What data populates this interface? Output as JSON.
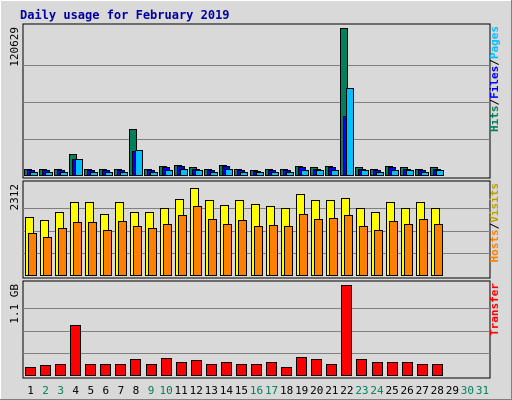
{
  "chart_data": {
    "type": "bar",
    "title": "Daily usage for February 2019",
    "days": [
      "1",
      "2",
      "3",
      "4",
      "5",
      "6",
      "7",
      "8",
      "9",
      "10",
      "11",
      "12",
      "13",
      "14",
      "15",
      "16",
      "17",
      "18",
      "19",
      "20",
      "21",
      "22",
      "23",
      "24",
      "25",
      "26",
      "27",
      "28",
      "29",
      "30",
      "31"
    ],
    "weekend_days": [
      "2",
      "3",
      "9",
      "10",
      "16",
      "17",
      "23",
      "24",
      "30",
      "31"
    ],
    "colors": {
      "title": "#0000a0",
      "hits": "#00805c",
      "files": "#0000ff",
      "pages": "#00c0ff",
      "visits": "#ffff00",
      "sites": "#ff8000",
      "kbytes": "#ff0000",
      "weekday_label": "#000000",
      "weekend_label": "#00805c"
    },
    "panels": [
      {
        "name": "hits-files-pages",
        "ymax_label": "120629",
        "ymax": 120629,
        "side_labels": [
          {
            "text": "Hits",
            "color": "#00805c"
          },
          {
            "text": "/",
            "color": "#000000"
          },
          {
            "text": "Files",
            "color": "#0000ff"
          },
          {
            "text": "/",
            "color": "#000000"
          },
          {
            "text": "Pages",
            "color": "#00c0ff"
          }
        ],
        "series": [
          {
            "key": "hits",
            "color": "#00805c",
            "values": [
              6100,
              5600,
              5600,
              18000,
              6100,
              6100,
              6100,
              38500,
              6100,
              8100,
              9000,
              7100,
              6100,
              9000,
              6100,
              5200,
              5600,
              5600,
              8100,
              7100,
              8100,
              120629,
              7100,
              6100,
              8100,
              7100,
              6100,
              7100,
              0,
              0,
              0
            ]
          },
          {
            "key": "files",
            "color": "#0000ff",
            "values": [
              5100,
              4600,
              4600,
              14000,
              5100,
              5100,
              5100,
              20500,
              5100,
              7100,
              8100,
              6100,
              5100,
              8100,
              5100,
              4200,
              4600,
              4600,
              7100,
              6100,
              7100,
              48500,
              6100,
              5100,
              7100,
              6100,
              5100,
              6100,
              0,
              0,
              0
            ]
          },
          {
            "key": "pages",
            "color": "#00c0ff",
            "values": [
              3600,
              3100,
              3100,
              13500,
              3600,
              3600,
              3600,
              21000,
              3600,
              5100,
              6100,
              5100,
              3600,
              6100,
              3600,
              3100,
              3100,
              3100,
              5100,
              4600,
              5100,
              72000,
              5100,
              3600,
              5100,
              4600,
              3600,
              5100,
              0,
              0,
              0
            ]
          }
        ]
      },
      {
        "name": "visits-sites",
        "ymax_label": "2312",
        "ymax": 2312,
        "side_labels": [
          {
            "text": "Hosts",
            "color": "#ff8000"
          },
          {
            "text": "/",
            "color": "#000000"
          },
          {
            "text": "Visits",
            "color": "#c0a000"
          }
        ],
        "series": [
          {
            "key": "visits",
            "color": "#ffff00",
            "values": [
              1500,
              1420,
              1630,
              1870,
              1870,
              1570,
              1870,
              1630,
              1630,
              1720,
              1960,
              2240,
              1930,
              1810,
              1930,
              1840,
              1780,
              1720,
              2080,
              1930,
              1930,
              1990,
              1720,
              1630,
              1870,
              1720,
              1870,
              1720,
              0,
              0,
              0
            ]
          },
          {
            "key": "sites",
            "color": "#ff8000",
            "values": [
              1090,
              1000,
              1210,
              1360,
              1360,
              1180,
              1390,
              1270,
              1210,
              1330,
              1540,
              1770,
              1450,
              1330,
              1420,
              1270,
              1300,
              1270,
              1570,
              1450,
              1480,
              1540,
              1270,
              1180,
              1390,
              1330,
              1450,
              1330,
              0,
              0,
              0
            ]
          }
        ]
      },
      {
        "name": "kbytes",
        "ymax_label": "1.1 GB",
        "ymax": 1.1,
        "side_labels": [
          {
            "text": "Transfer",
            "color": "#ff0000"
          }
        ],
        "series": [
          {
            "key": "kbytes",
            "color": "#ff0000",
            "values": [
              0.11,
              0.13,
              0.15,
              0.62,
              0.15,
              0.15,
              0.15,
              0.2,
              0.15,
              0.22,
              0.17,
              0.19,
              0.15,
              0.17,
              0.15,
              0.15,
              0.17,
              0.11,
              0.23,
              0.2,
              0.15,
              1.1,
              0.2,
              0.17,
              0.17,
              0.17,
              0.15,
              0.15,
              0,
              0,
              0
            ]
          }
        ]
      }
    ]
  }
}
